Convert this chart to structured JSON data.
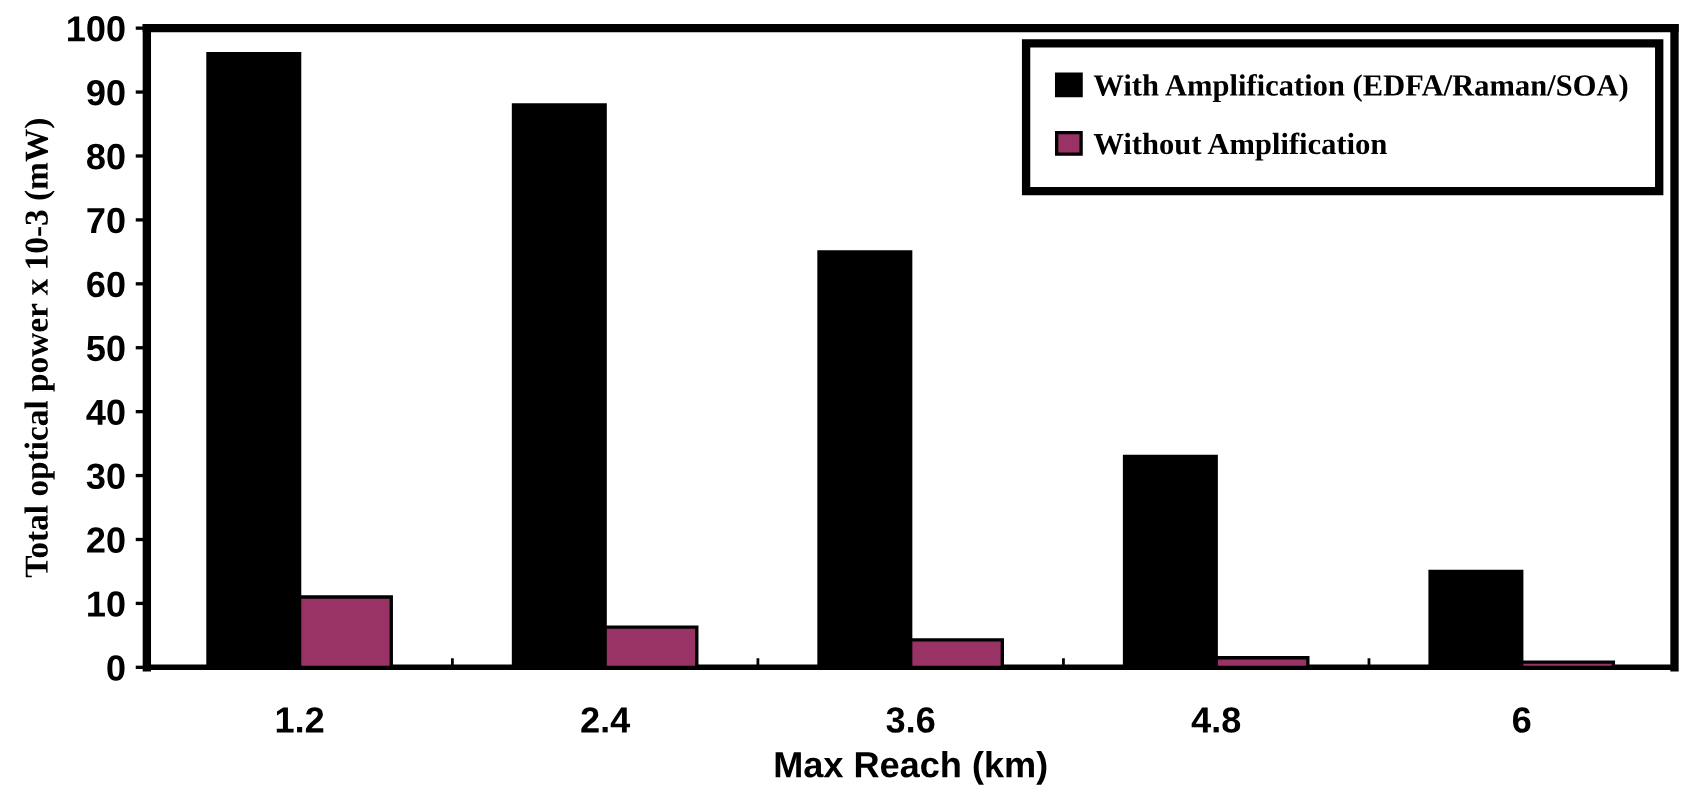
{
  "chart_data": {
    "type": "bar",
    "xlabel": "Max Reach (km)",
    "ylabel": "Total optical power x 10-3 (mW)",
    "categories": [
      "1.2",
      "2.4",
      "3.6",
      "4.8",
      "6"
    ],
    "series": [
      {
        "name": "With Amplification (EDFA/Raman/SOA)",
        "color": "#000000",
        "values": [
          96,
          88,
          65,
          33,
          15
        ]
      },
      {
        "name": "Without Amplification",
        "color": "#993366",
        "values": [
          11,
          6.3,
          4.3,
          1.5,
          0.8
        ]
      }
    ],
    "ylim": [
      0,
      100
    ],
    "yticks": [
      0,
      10,
      20,
      30,
      40,
      50,
      60,
      70,
      80,
      90,
      100
    ],
    "grid": false,
    "legend": "top right"
  }
}
